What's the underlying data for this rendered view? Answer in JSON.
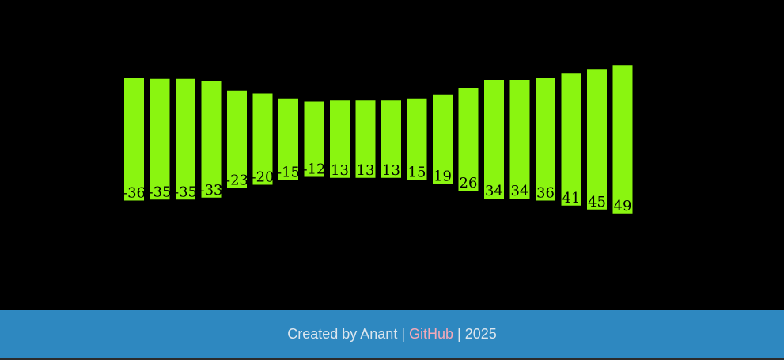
{
  "colors": {
    "background": "#000000",
    "bar": "#8af510",
    "label": "#000000",
    "footer_background": "#2e88c0",
    "footer_text": "#dde6ee",
    "footer_link": "#f4a9b8"
  },
  "chart_data": {
    "type": "bar",
    "title": "",
    "xlabel": "",
    "ylabel": "",
    "grid": false,
    "values": [
      -36,
      -35,
      -35,
      -33,
      -23,
      -20,
      -15,
      -12,
      13,
      13,
      13,
      15,
      19,
      26,
      34,
      34,
      36,
      41,
      45,
      49
    ]
  },
  "footer": {
    "prefix": "Created by Anant | ",
    "link_label": "GitHub",
    "suffix": " | 2025"
  }
}
